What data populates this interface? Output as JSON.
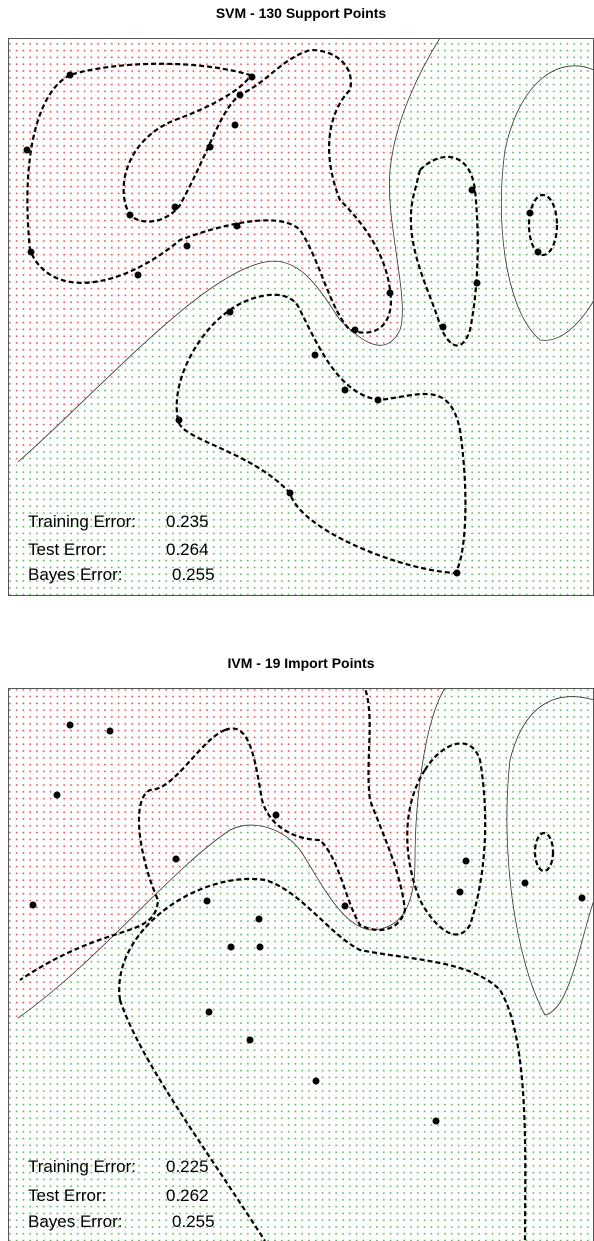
{
  "panels": [
    {
      "title": "SVM - 130 Support Points",
      "errors": [
        {
          "label": "Training Error:",
          "value": 0.235
        },
        {
          "label": "Test Error:",
          "value": 0.264
        },
        {
          "label": "Bayes Error:",
          "value": 0.255
        }
      ]
    },
    {
      "title": "IVM - 19 Import Points",
      "errors": [
        {
          "label": "Training Error:",
          "value": 0.225
        },
        {
          "label": "Test Error:",
          "value": 0.262
        },
        {
          "label": "Bayes Error:",
          "value": 0.255
        }
      ]
    }
  ]
}
